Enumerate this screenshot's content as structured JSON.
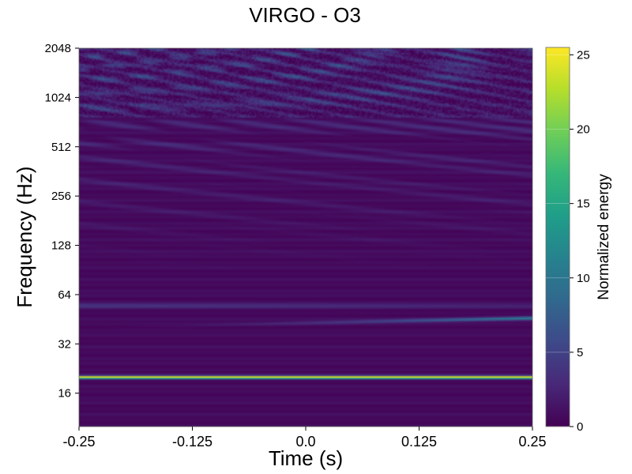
{
  "chart_data": {
    "type": "heatmap",
    "title": "VIRGO - O3",
    "xlabel": "Time (s)",
    "ylabel": "Frequency (Hz)",
    "xlim": [
      -0.25,
      0.25
    ],
    "ylim": [
      10,
      2048
    ],
    "yscale": "log2",
    "x_ticks": [
      -0.25,
      -0.125,
      0.0,
      0.125,
      0.25
    ],
    "x_tick_labels": [
      "-0.25",
      "-0.125",
      "0.0",
      "0.125",
      "0.25"
    ],
    "y_ticks": [
      16,
      32,
      64,
      128,
      256,
      512,
      1024,
      2048
    ],
    "y_tick_labels": [
      "16",
      "32",
      "64",
      "128",
      "256",
      "512",
      "1024",
      "2048"
    ],
    "colorbar": {
      "label": "Normalized energy",
      "range": [
        0,
        25.5
      ],
      "ticks": [
        0,
        5,
        10,
        15,
        20,
        25
      ],
      "tick_labels": [
        "0",
        "5",
        "10",
        "15",
        "20",
        "25"
      ],
      "colormap": "viridis"
    },
    "features": [
      {
        "kind": "constant-line",
        "frequency": 20,
        "energy": 25
      },
      {
        "kind": "rising-line",
        "frequency_start": 40,
        "frequency_end": 46,
        "energy_end": 10
      },
      {
        "kind": "band",
        "frequency": 55,
        "energy": 4
      }
    ]
  },
  "colors": {
    "viridis": [
      "#440154",
      "#482878",
      "#3e4989",
      "#31688e",
      "#26828e",
      "#1f9e89",
      "#35b779",
      "#6ece58",
      "#b5de2b",
      "#fde725"
    ]
  }
}
